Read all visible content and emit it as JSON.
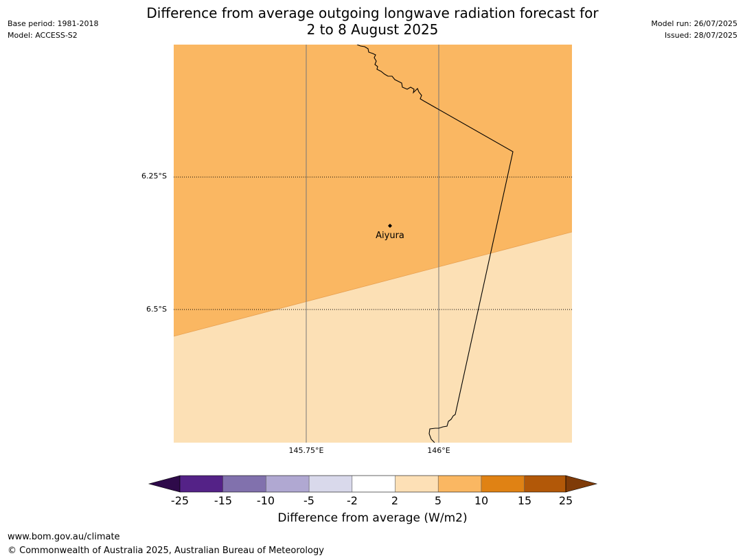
{
  "header": {
    "title_line1": "Difference from average outgoing longwave radiation forecast for",
    "title_line2": "2 to 8 August 2025",
    "base_period": "Base period: 1981-2018",
    "model": "Model: ACCESS-S2",
    "model_run": "Model run: 26/07/2025",
    "issued": "Issued: 28/07/2025"
  },
  "map": {
    "lat_ticks": [
      "6.25°S",
      "6.5°S"
    ],
    "lon_ticks": [
      "145.75°E",
      "146°E"
    ],
    "place_name": "Aiyura",
    "fill_colors": {
      "5_to_10": "#fab762",
      "2_to_5": "#fce0b5"
    }
  },
  "colorbar": {
    "title": "Difference from average (W/m2)",
    "tick_labels": [
      "-25",
      "-15",
      "-10",
      "-5",
      "-2",
      "2",
      "5",
      "10",
      "15",
      "25"
    ],
    "colors": {
      "under": "#2e0a4a",
      "bins": [
        "#542287",
        "#8171ad",
        "#b0a8d2",
        "#d9d9eb",
        "#ffffff",
        "#fde0b6",
        "#fab762",
        "#e08214",
        "#b25808"
      ],
      "over": "#7f3b08"
    }
  },
  "footer": {
    "url": "www.bom.gov.au/climate",
    "copyright": "© Commonwealth of Australia 2025, Australian Bureau of Meteorology"
  }
}
